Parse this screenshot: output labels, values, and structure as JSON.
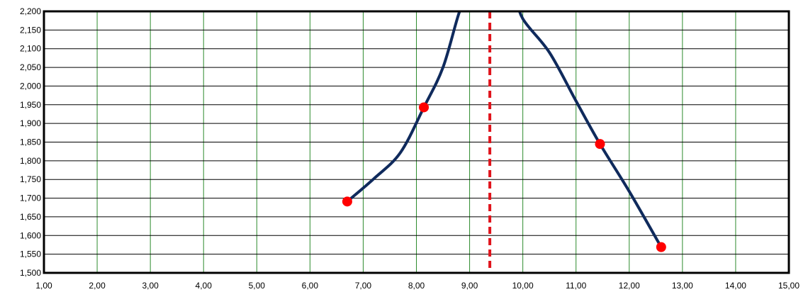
{
  "chart_data": {
    "type": "line",
    "title": "",
    "xlabel": "",
    "ylabel": "",
    "xlim": [
      1,
      15
    ],
    "ylim": [
      1500,
      2200
    ],
    "x_ticks": [
      {
        "value": 1,
        "label": "1,00"
      },
      {
        "value": 2,
        "label": "2,00"
      },
      {
        "value": 3,
        "label": "3,00"
      },
      {
        "value": 4,
        "label": "4,00"
      },
      {
        "value": 5,
        "label": "5,00"
      },
      {
        "value": 6,
        "label": "6,00"
      },
      {
        "value": 7,
        "label": "7,00"
      },
      {
        "value": 8,
        "label": "8,00"
      },
      {
        "value": 9,
        "label": "9,00"
      },
      {
        "value": 10,
        "label": "10,00"
      },
      {
        "value": 11,
        "label": "11,00"
      },
      {
        "value": 12,
        "label": "12,00"
      },
      {
        "value": 13,
        "label": "13,00"
      },
      {
        "value": 14,
        "label": "14,00"
      },
      {
        "value": 15,
        "label": "15,00"
      }
    ],
    "y_ticks": [
      {
        "value": 1500,
        "label": "1,500"
      },
      {
        "value": 1550,
        "label": "1,550"
      },
      {
        "value": 1600,
        "label": "1,600"
      },
      {
        "value": 1650,
        "label": "1,650"
      },
      {
        "value": 1700,
        "label": "1,700"
      },
      {
        "value": 1750,
        "label": "1,750"
      },
      {
        "value": 1800,
        "label": "1,800"
      },
      {
        "value": 1850,
        "label": "1,850"
      },
      {
        "value": 1900,
        "label": "1,900"
      },
      {
        "value": 1950,
        "label": "1,950"
      },
      {
        "value": 2000,
        "label": "2,000"
      },
      {
        "value": 2050,
        "label": "2,050"
      },
      {
        "value": 2100,
        "label": "2,100"
      },
      {
        "value": 2150,
        "label": "2,150"
      },
      {
        "value": 2200,
        "label": "2,200"
      }
    ],
    "grid": {
      "vertical": true,
      "horizontal": true
    },
    "series": [
      {
        "points": [
          {
            "x": 6.7,
            "y": 1691
          },
          {
            "x": 8.14,
            "y": 1943
          },
          {
            "x": 11.45,
            "y": 1845
          },
          {
            "x": 12.6,
            "y": 1569
          }
        ],
        "curve": [
          {
            "x": 6.7,
            "y": 1691
          },
          {
            "x": 7.2,
            "y": 1752
          },
          {
            "x": 7.7,
            "y": 1822
          },
          {
            "x": 8.14,
            "y": 1943
          },
          {
            "x": 8.5,
            "y": 2050
          },
          {
            "x": 8.8,
            "y": 2195
          },
          {
            "x": 9.0,
            "y": 2260
          },
          {
            "x": 9.4,
            "y": 2300
          },
          {
            "x": 9.8,
            "y": 2260
          },
          {
            "x": 10.0,
            "y": 2180
          },
          {
            "x": 10.5,
            "y": 2090
          },
          {
            "x": 11.0,
            "y": 1960
          },
          {
            "x": 11.45,
            "y": 1845
          },
          {
            "x": 12.0,
            "y": 1718
          },
          {
            "x": 12.6,
            "y": 1569
          }
        ]
      }
    ],
    "reference_line": {
      "x": 9.38,
      "orientation": "vertical",
      "style": "dashed"
    },
    "colors": {
      "curve": "#0f2a5c",
      "point": "#ff0000",
      "reference_line": "#e0141c",
      "vertical_grid": "#2e8b2e",
      "horizontal_grid": "#000000",
      "frame": "#000000"
    }
  }
}
